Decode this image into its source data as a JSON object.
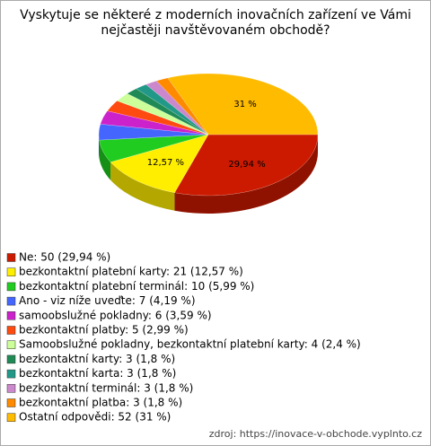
{
  "chart_data": {
    "type": "pie",
    "title": [
      "Vyskytuje se některé z moderních inovačních zařízení ve Vámi",
      "nejčastěji navštěvovaném obchodě?"
    ],
    "categories": [
      "Ne: 50 (29,94 %)",
      "bezkontaktní platební karty: 21 (12,57 %)",
      "bezkontaktní platební terminál: 10 (5,99 %)",
      "Ano - viz níže uveďte: 7 (4,19 %)",
      "samoobslužné pokladny: 6 (3,59 %)",
      "bezkontaktní platby: 5 (2,99 %)",
      "Samoobslužné pokladny, bezkontaktní platební karty: 4 (2,4 %)",
      "bezkontaktní karty: 3 (1,8 %)",
      "bezkontaktní karta: 3 (1,8 %)",
      "bezkontaktní terminál: 3 (1,8 %)",
      "bezkontaktní platba: 3 (1,8 %)",
      "Ostatní odpovědi: 52 (31 %)"
    ],
    "values": [
      29.94,
      12.57,
      5.99,
      4.19,
      3.59,
      2.99,
      2.4,
      1.8,
      1.8,
      1.8,
      1.8,
      31
    ],
    "value_labels": [
      "29,94 %",
      "12,57 %",
      null,
      null,
      null,
      null,
      null,
      null,
      null,
      null,
      null,
      "31 %"
    ],
    "colors": [
      "#cc1a00",
      "#ffee00",
      "#1fcc1f",
      "#4466ff",
      "#cc22cc",
      "#ff4a10",
      "#ccff99",
      "#1f8a55",
      "#229988",
      "#cc88cc",
      "#ff8a00",
      "#ffbb00"
    ],
    "source": "zdroj: https://inovace-v-obchode.vyplnto.cz"
  }
}
